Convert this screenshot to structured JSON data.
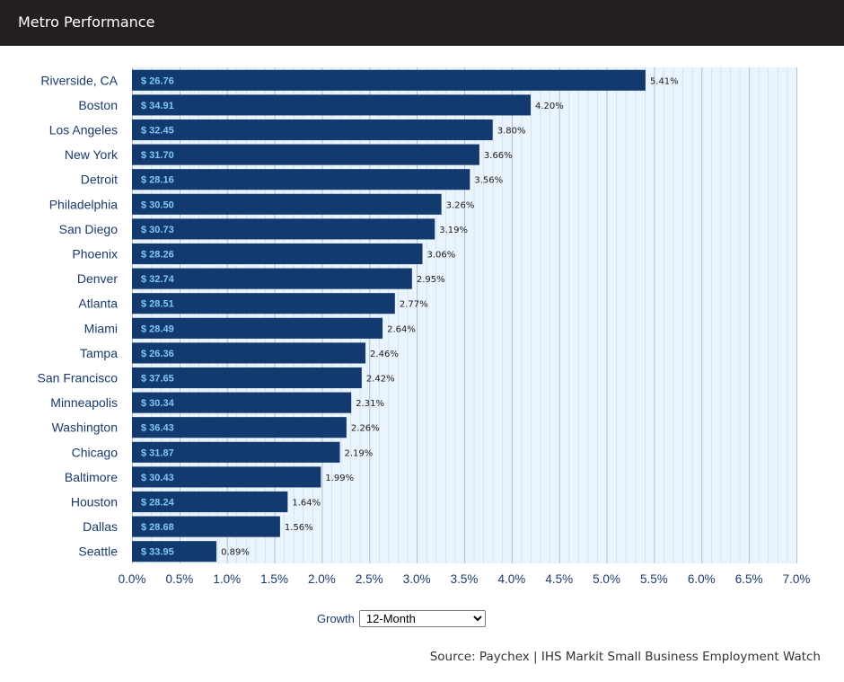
{
  "header": {
    "title": "Metro Performance"
  },
  "colors": {
    "bar": "#133a6f",
    "bar_label": "#7ec8f5",
    "axis_text": "#1a3a6b",
    "plot_bg": "#eaf4fc",
    "grid": "#a9b9cc"
  },
  "controls": {
    "growth_label": "Growth",
    "growth_selected": "12-Month"
  },
  "source": "Source: Paychex | IHS Markit Small Business Employment Watch",
  "chart_data": {
    "type": "bar",
    "orientation": "horizontal",
    "title": "",
    "xlabel": "",
    "ylabel": "",
    "xlim": [
      0,
      7.0
    ],
    "grid": true,
    "categories": [
      "Riverside, CA",
      "Boston",
      "Los Angeles",
      "New York",
      "Detroit",
      "Philadelphia",
      "San Diego",
      "Phoenix",
      "Denver",
      "Atlanta",
      "Miami",
      "Tampa",
      "San Francisco",
      "Minneapolis",
      "Washington",
      "Chicago",
      "Baltimore",
      "Houston",
      "Dallas",
      "Seattle"
    ],
    "values": [
      5.41,
      4.2,
      3.8,
      3.66,
      3.56,
      3.26,
      3.19,
      3.06,
      2.95,
      2.77,
      2.64,
      2.46,
      2.42,
      2.31,
      2.26,
      2.19,
      1.99,
      1.64,
      1.56,
      0.89
    ],
    "value_labels": [
      "5.41%",
      "4.20%",
      "3.80%",
      "3.66%",
      "3.56%",
      "3.26%",
      "3.19%",
      "3.06%",
      "2.95%",
      "2.77%",
      "2.64%",
      "2.46%",
      "2.42%",
      "2.31%",
      "2.26%",
      "2.19%",
      "1.99%",
      "1.64%",
      "1.56%",
      "0.89%"
    ],
    "bar_labels": [
      "$ 26.76",
      "$ 34.91",
      "$ 32.45",
      "$ 31.70",
      "$ 28.16",
      "$ 30.50",
      "$ 30.73",
      "$ 28.26",
      "$ 32.74",
      "$ 28.51",
      "$ 28.49",
      "$ 26.36",
      "$ 37.65",
      "$ 30.34",
      "$ 36.43",
      "$ 31.87",
      "$ 30.43",
      "$ 28.24",
      "$ 28.68",
      "$ 33.95"
    ],
    "x_ticks": [
      "0.0%",
      "0.5%",
      "1.0%",
      "1.5%",
      "2.0%",
      "2.5%",
      "3.0%",
      "3.5%",
      "4.0%",
      "4.5%",
      "5.0%",
      "5.5%",
      "6.0%",
      "6.5%",
      "7.0%"
    ]
  }
}
